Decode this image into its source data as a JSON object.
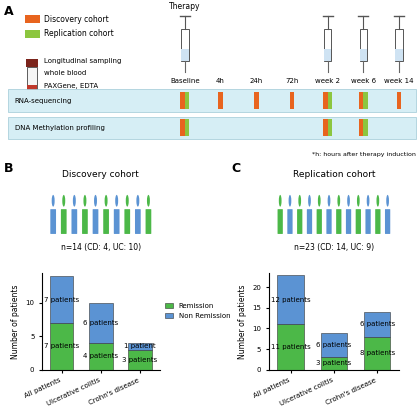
{
  "panel_a": {
    "label": "A",
    "cohorts": [
      {
        "name": "Discovery cohort",
        "color": "#e8641e"
      },
      {
        "name": "Replication cohort",
        "color": "#8cc63f"
      }
    ],
    "sampling": [
      "Longitudinal sampling",
      "whole blood",
      "PAXGene, EDTA"
    ],
    "therapy_label": "Therapy",
    "timepoints": [
      "Baseline",
      "4h",
      "24h",
      "72h",
      "week 2",
      "week 6",
      "week 14"
    ],
    "therapy_at": [
      "Baseline",
      "week 2",
      "week 6",
      "week 14"
    ],
    "assays": [
      {
        "label": "RNA-sequencing",
        "samples": [
          {
            "cohort": "Discovery cohort",
            "timepoints": [
              "Baseline",
              "4h",
              "24h",
              "72h",
              "week 2",
              "week 6",
              "week 14"
            ]
          },
          {
            "cohort": "Replication cohort",
            "timepoints": [
              "Baseline",
              "week 2",
              "week 6"
            ]
          }
        ]
      },
      {
        "label": "DNA Methylation profiling",
        "samples": [
          {
            "cohort": "Discovery cohort",
            "timepoints": [
              "Baseline",
              "week 2",
              "week 6"
            ]
          },
          {
            "cohort": "Replication cohort",
            "timepoints": [
              "Baseline",
              "week 2",
              "week 6"
            ]
          }
        ]
      }
    ],
    "footnote": "*h: hours after therapy induction"
  },
  "chart_data": [
    {
      "label": "B",
      "type": "bar",
      "stacked": true,
      "data_labels": true,
      "legend": "center",
      "title": "Discovery cohort",
      "subtitle": "n=14 (CD: 4, UC: 10)",
      "categories": [
        "All patients",
        "Ulcerative colitis",
        "Crohn's disease"
      ],
      "series": [
        {
          "name": "Remission",
          "color": "#4cb848",
          "values": [
            7,
            4,
            3
          ],
          "value_labels": [
            "7 patients",
            "4 patients",
            "3 patients"
          ]
        },
        {
          "name": "Non Remission",
          "color": "#5b93d3",
          "values": [
            7,
            6,
            1
          ],
          "value_labels": [
            "7 patients",
            "6 patients",
            "1 patient"
          ]
        }
      ],
      "y_label": "Number of patients",
      "ylim": [
        0,
        14.5
      ],
      "yticks": [
        0,
        5,
        10
      ]
    },
    {
      "label": "C",
      "type": "bar",
      "stacked": true,
      "data_labels": true,
      "title": "Replication cohort",
      "subtitle": "n=23 (CD: 14, UC: 9)",
      "categories": [
        "All patients",
        "Ulcerative colitis",
        "Crohn's disease"
      ],
      "series": [
        {
          "name": "Remission",
          "color": "#4cb848",
          "values": [
            11,
            3,
            8
          ],
          "value_labels": [
            "11 patients",
            "3 patients",
            "8 patients"
          ]
        },
        {
          "name": "Non Remission",
          "color": "#5b93d3",
          "values": [
            12,
            6,
            6
          ],
          "value_labels": [
            "12 patients",
            "6 patients",
            "6 patients"
          ]
        }
      ],
      "y_label": "Number of patients",
      "ylim": [
        0,
        23.5
      ],
      "yticks": [
        0,
        5,
        10,
        15,
        20
      ]
    }
  ]
}
